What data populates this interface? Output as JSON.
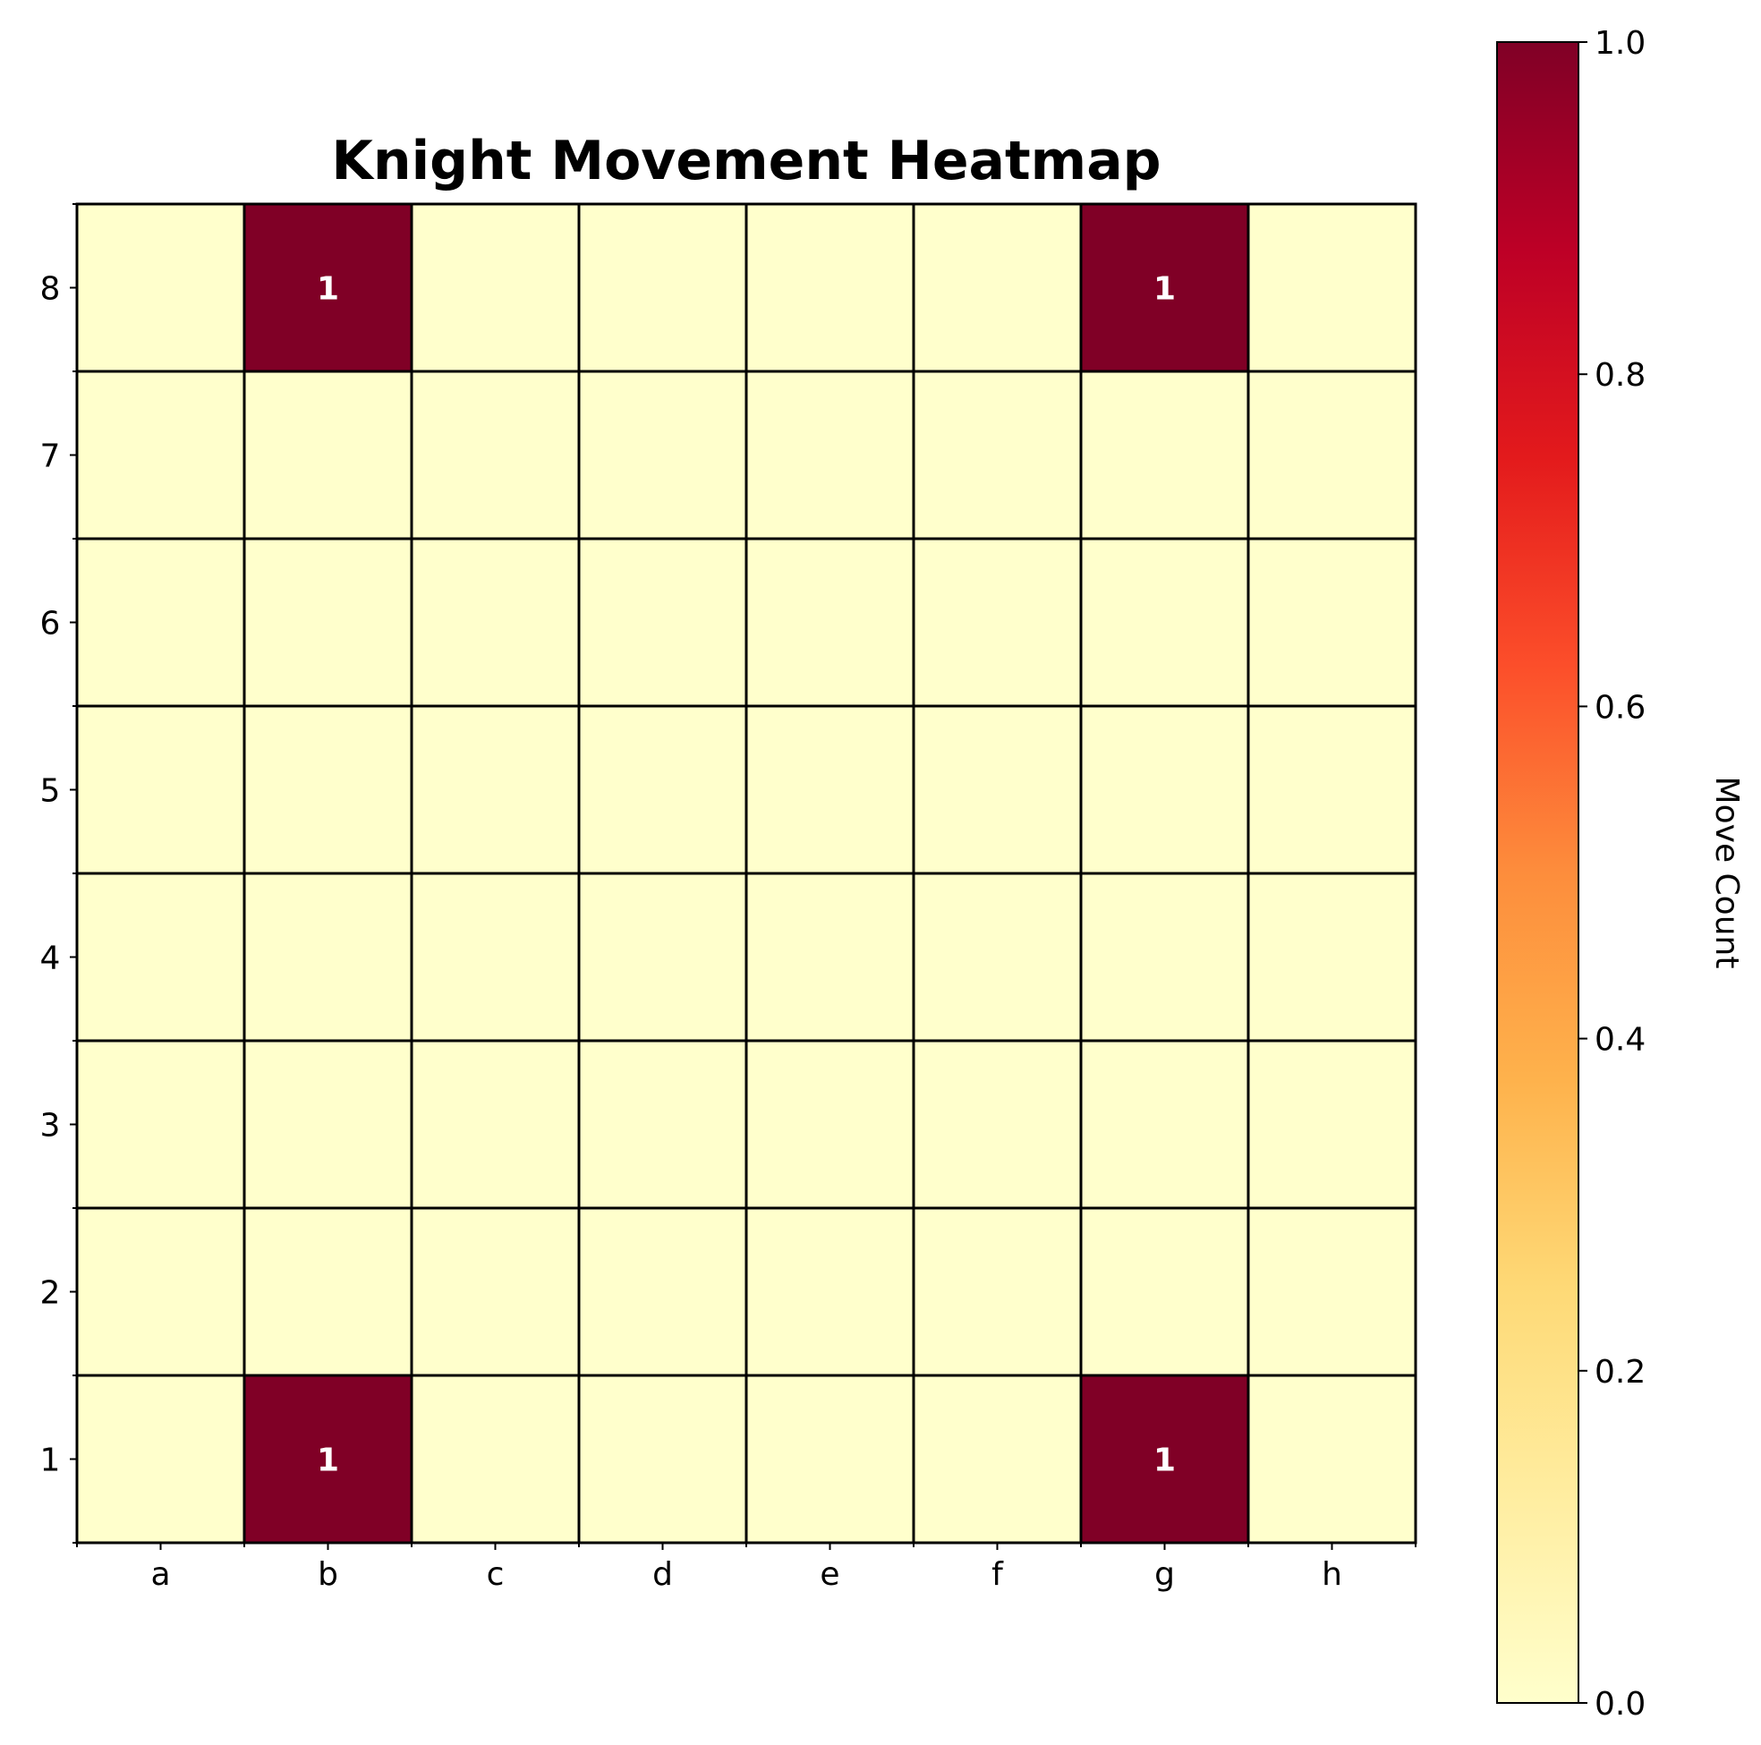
{
  "chart_data": {
    "type": "heatmap",
    "title": "Knight Movement Heatmap",
    "x_categories": [
      "a",
      "b",
      "c",
      "d",
      "e",
      "f",
      "g",
      "h"
    ],
    "y_categories": [
      "8",
      "7",
      "6",
      "5",
      "4",
      "3",
      "2",
      "1"
    ],
    "values": [
      [
        0,
        1,
        0,
        0,
        0,
        0,
        1,
        0
      ],
      [
        0,
        0,
        0,
        0,
        0,
        0,
        0,
        0
      ],
      [
        0,
        0,
        0,
        0,
        0,
        0,
        0,
        0
      ],
      [
        0,
        0,
        0,
        0,
        0,
        0,
        0,
        0
      ],
      [
        0,
        0,
        0,
        0,
        0,
        0,
        0,
        0
      ],
      [
        0,
        0,
        0,
        0,
        0,
        0,
        0,
        0
      ],
      [
        0,
        0,
        0,
        0,
        0,
        0,
        0,
        0
      ],
      [
        0,
        1,
        0,
        0,
        0,
        0,
        1,
        0
      ]
    ],
    "cell_annotations": [
      {
        "x": "b",
        "y": "8",
        "text": "1"
      },
      {
        "x": "g",
        "y": "8",
        "text": "1"
      },
      {
        "x": "b",
        "y": "1",
        "text": "1"
      },
      {
        "x": "g",
        "y": "1",
        "text": "1"
      }
    ],
    "colormap": "YlOrRd",
    "colorbar": {
      "label": "Move Count",
      "range": [
        0.0,
        1.0
      ],
      "ticks": [
        "0.0",
        "0.2",
        "0.4",
        "0.6",
        "0.8",
        "1.0"
      ],
      "position": "right"
    },
    "grid": true,
    "colors": {
      "low": "#ffffcc",
      "high": "#800026",
      "gridline": "#000000",
      "annotation_text": "#ffffff"
    }
  }
}
